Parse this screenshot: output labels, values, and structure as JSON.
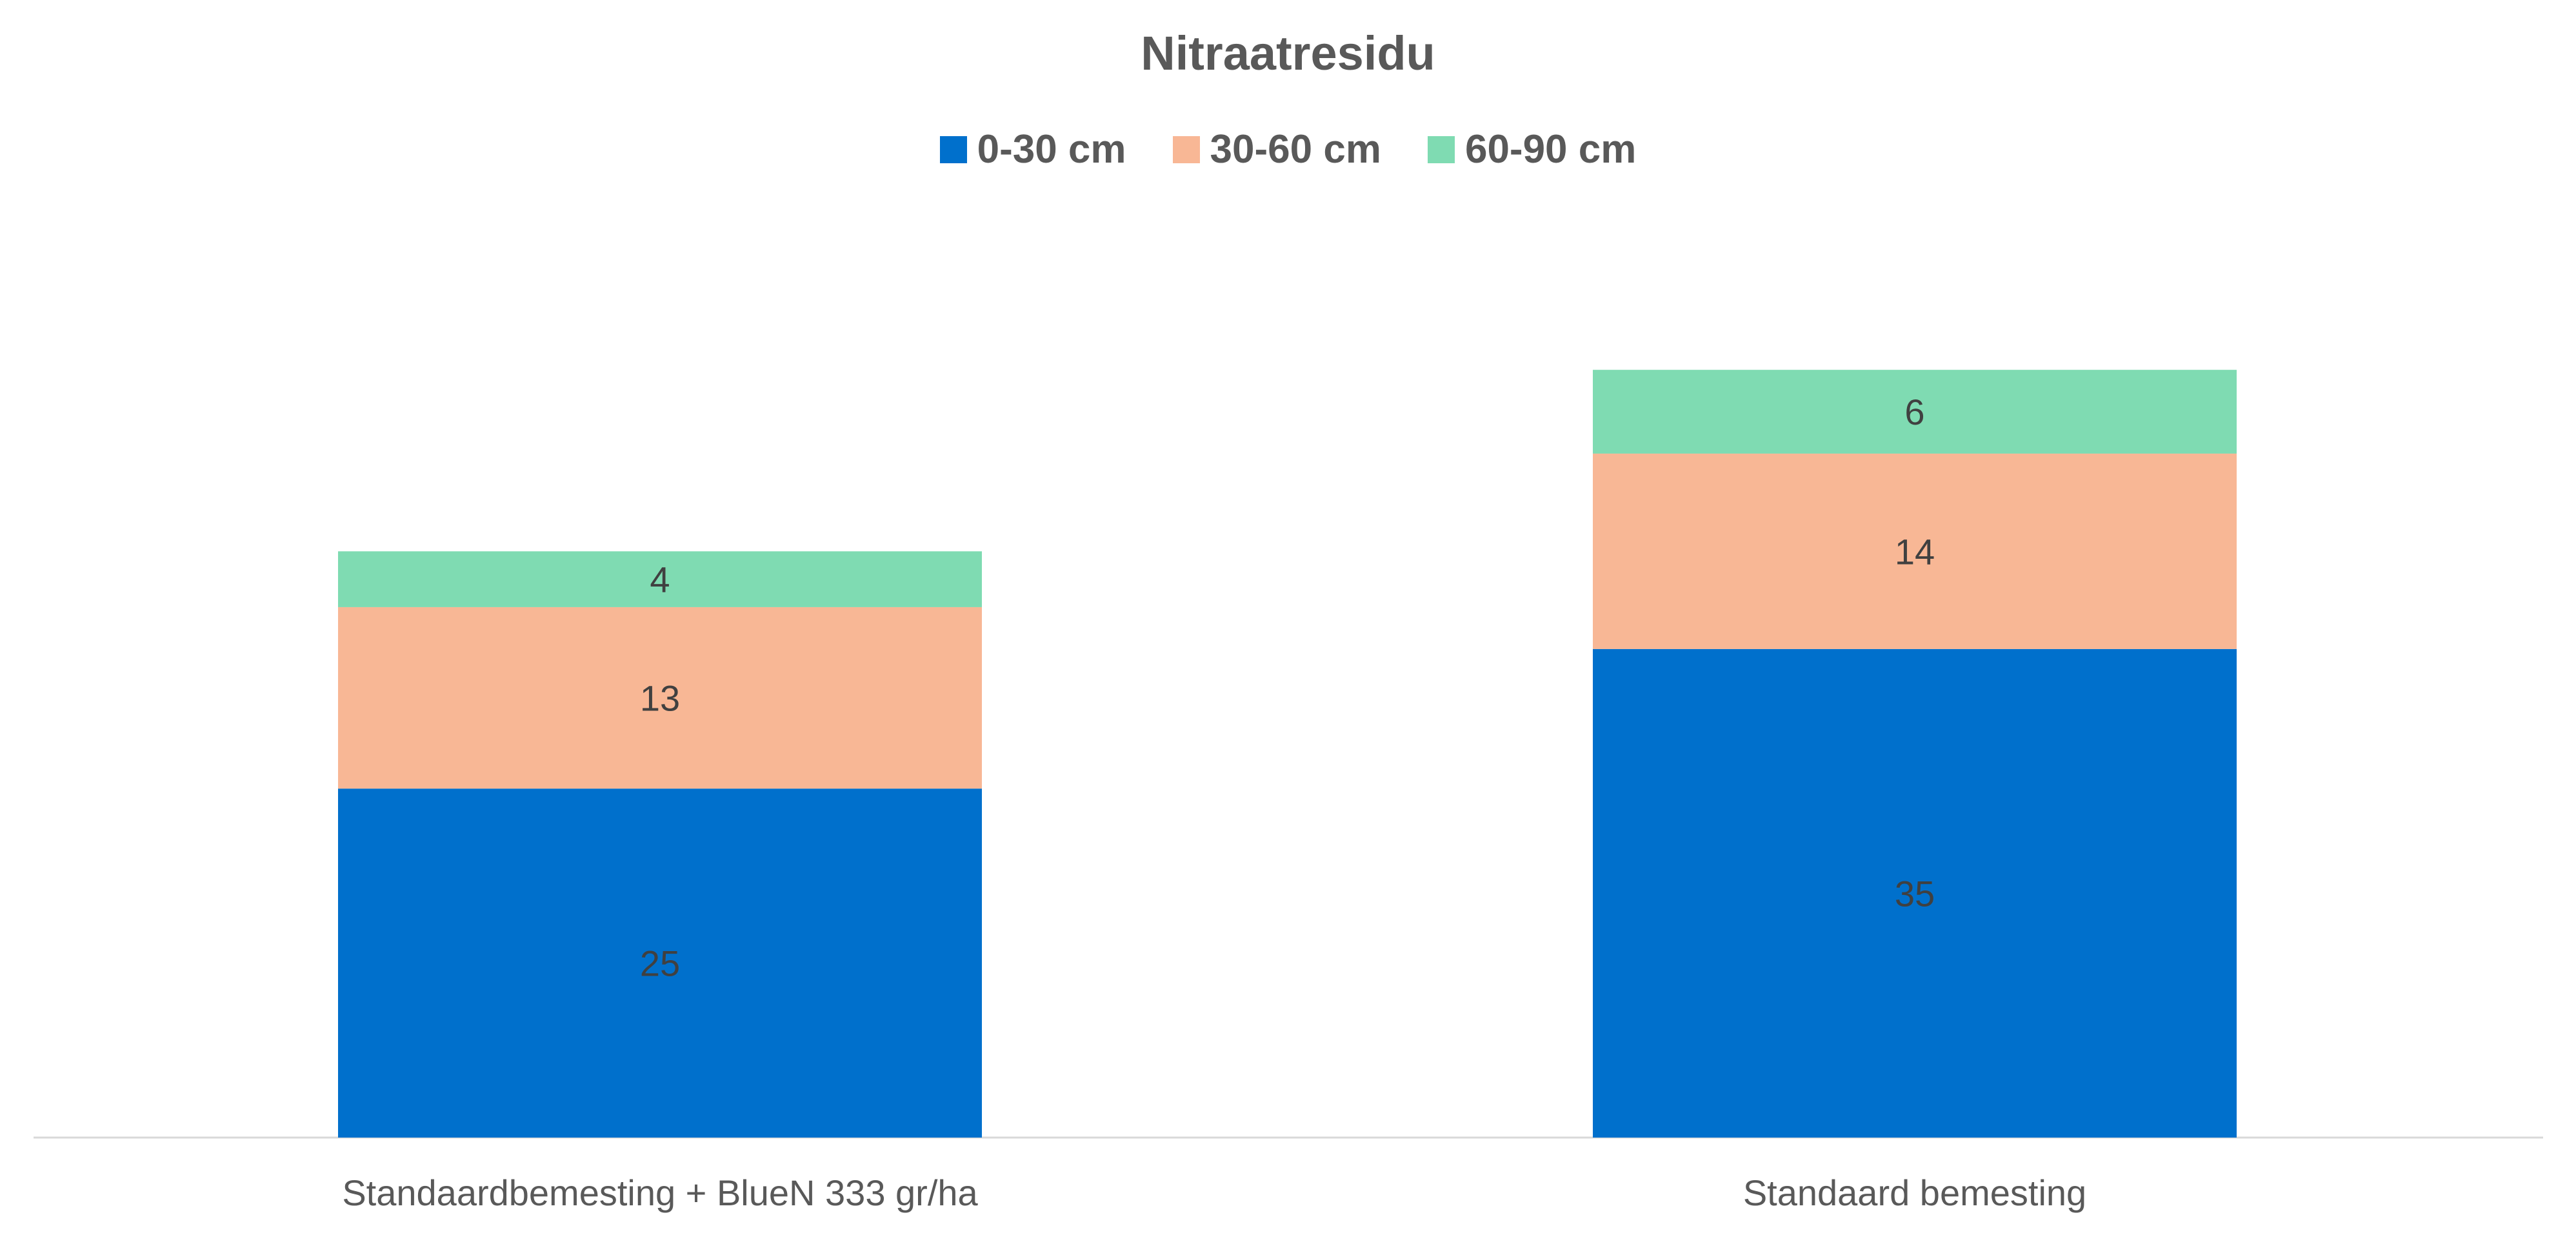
{
  "chart_data": {
    "type": "bar",
    "stacked": true,
    "title": "Nitraatresidu",
    "categories": [
      "Standaardbemesting + BlueN 333 gr/ha",
      "Standaard bemesting"
    ],
    "series": [
      {
        "name": "0-30 cm",
        "values": [
          25,
          35
        ],
        "color": "#0070CC"
      },
      {
        "name": "30-60 cm",
        "values": [
          13,
          14
        ],
        "color": "#F8B795"
      },
      {
        "name": "60-90 cm",
        "values": [
          4,
          6
        ],
        "color": "#7FDBB2"
      }
    ],
    "data_labels": true,
    "legend_position": "top",
    "grid": false,
    "y_axis_visible": false,
    "ylim": [
      0,
      60
    ]
  }
}
